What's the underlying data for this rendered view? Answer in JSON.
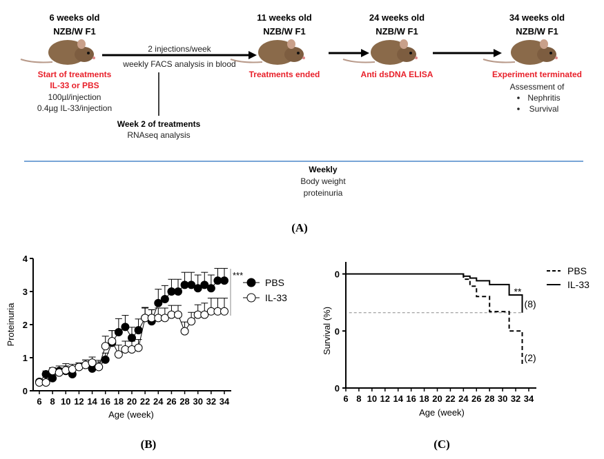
{
  "panel_a": {
    "stages": [
      {
        "age": "6 weeks old",
        "strain": "NZB/W F1",
        "event": "Start of treatments",
        "event2": "IL-33 or PBS",
        "notes": [
          "100µl/injection",
          "0.4µg IL-33/injection"
        ]
      },
      {
        "age": "11 weeks old",
        "strain": "NZB/W F1",
        "event": "Treatments ended"
      },
      {
        "age": "24 weeks old",
        "strain": "NZB/W F1",
        "event": "Anti dsDNA ELISA"
      },
      {
        "age": "34 weeks old",
        "strain": "NZB/W F1",
        "event": "Experiment terminated",
        "notes": [
          "Assessment  of",
          "Nephritis",
          "Survival"
        ]
      }
    ],
    "arrow_label_top": "2 injections/week",
    "arrow_label_bottom": "weekly FACS analysis in blood",
    "branch_title": "Week 2 of treatments",
    "branch_sub": "RNAseq analysis",
    "weekly_title": "Weekly",
    "weekly_items": [
      "Body weight",
      "proteinuria"
    ],
    "weekly_line_color": "#4a86c8",
    "label": "(A)"
  },
  "chart_data": [
    {
      "type": "line",
      "panel_label": "(B)",
      "xlabel": "Age (week)",
      "ylabel": "Proteinuria",
      "xlim": [
        6,
        34
      ],
      "ylim": [
        0,
        4
      ],
      "xticks": [
        "6",
        "8",
        "10",
        "12",
        "14",
        "16",
        "18",
        "20",
        "22",
        "24",
        "26",
        "28",
        "30",
        "32",
        "34"
      ],
      "yticks": [
        "0",
        "1",
        "2",
        "3",
        "4"
      ],
      "x": [
        6,
        7,
        8,
        9,
        10,
        11,
        12,
        13,
        14,
        15,
        16,
        17,
        18,
        19,
        20,
        21,
        22,
        23,
        24,
        25,
        26,
        27,
        28,
        29,
        30,
        31,
        32,
        33,
        34
      ],
      "series": [
        {
          "name": "PBS",
          "marker": "filled-circle",
          "values": [
            0.27,
            0.5,
            0.38,
            0.6,
            0.6,
            0.5,
            0.72,
            0.78,
            0.67,
            0.72,
            0.94,
            1.45,
            1.77,
            1.93,
            1.6,
            1.83,
            2.2,
            2.1,
            2.65,
            2.77,
            3.0,
            3.0,
            3.2,
            3.2,
            3.1,
            3.2,
            3.1,
            3.33,
            3.33
          ],
          "error": [
            0.05,
            0.1,
            0.1,
            0.15,
            0.15,
            0.15,
            0.12,
            0.15,
            0.2,
            0.2,
            0.2,
            0.37,
            0.41,
            0.35,
            0.32,
            0.34,
            0.32,
            0.35,
            0.42,
            0.41,
            0.37,
            0.37,
            0.38,
            0.38,
            0.4,
            0.38,
            0.4,
            0.37,
            0.37
          ]
        },
        {
          "name": "IL-33",
          "marker": "open-circle",
          "values": [
            0.25,
            0.25,
            0.6,
            0.55,
            0.62,
            0.65,
            0.72,
            0.78,
            0.85,
            0.72,
            1.35,
            1.5,
            1.1,
            1.25,
            1.25,
            1.3,
            2.2,
            2.2,
            2.2,
            2.2,
            2.3,
            2.3,
            1.8,
            2.1,
            2.3,
            2.3,
            2.4,
            2.4,
            2.4
          ],
          "error": [
            0.05,
            0.05,
            0.1,
            0.12,
            0.2,
            0.15,
            0.12,
            0.15,
            0.17,
            0.15,
            0.3,
            0.32,
            0.28,
            0.25,
            0.25,
            0.25,
            0.3,
            0.25,
            0.3,
            0.3,
            0.28,
            0.28,
            0.28,
            0.27,
            0.3,
            0.35,
            0.4,
            0.4,
            0.4
          ]
        }
      ],
      "annotation": "***",
      "legend_position": "right"
    },
    {
      "type": "step",
      "panel_label": "(C)",
      "xlabel": "Age (week)",
      "ylabel": "Survival (%)",
      "xlim": [
        6,
        34
      ],
      "ylim": [
        0,
        100
      ],
      "xticks": [
        "6",
        "8",
        "10",
        "12",
        "14",
        "16",
        "18",
        "20",
        "22",
        "24",
        "26",
        "28",
        "30",
        "32",
        "34"
      ],
      "yticks": [
        "0",
        "0",
        "0"
      ],
      "series": [
        {
          "name": "PBS",
          "style": "dashed",
          "x": [
            6,
            24,
            25,
            26,
            28,
            31,
            33
          ],
          "values": [
            100,
            95.4,
            89.3,
            80.2,
            67,
            50,
            20
          ],
          "end_label": "(2)"
        },
        {
          "name": "IL-33",
          "style": "solid",
          "x": [
            6,
            24,
            25,
            26,
            28,
            31,
            33
          ],
          "values": [
            100,
            98,
            96.4,
            94,
            90.7,
            81.6,
            66
          ],
          "end_label": "(8)"
        }
      ],
      "reference_line": 66,
      "annotation": "**",
      "legend_position": "top-right"
    }
  ]
}
